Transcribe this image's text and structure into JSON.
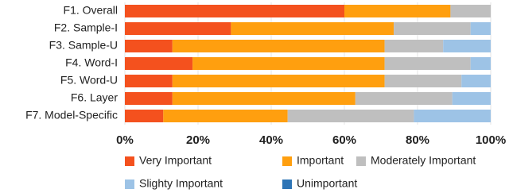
{
  "chart_data": {
    "type": "stacked-bar-horizontal",
    "categories": [
      "F1. Overall",
      "F2. Sample-I",
      "F3. Sample-U",
      "F4. Word-I",
      "F5. Word-U",
      "F6. Layer",
      "F7. Model-Specific"
    ],
    "series": [
      {
        "name": "Very Important",
        "color": "#f4511e",
        "values": [
          60,
          29,
          13,
          18.5,
          13,
          13,
          10.5
        ]
      },
      {
        "name": "Important",
        "color": "#ff9f0f",
        "values": [
          29,
          44.5,
          58,
          52.5,
          58,
          50,
          34
        ]
      },
      {
        "name": "Moderately Important",
        "color": "#bfbfbf",
        "values": [
          11,
          21,
          16,
          23.5,
          21,
          26.5,
          34.5
        ]
      },
      {
        "name": "Slighty Important",
        "color": "#9dc3e6",
        "values": [
          0,
          5.5,
          13,
          5.5,
          8,
          10.5,
          21
        ]
      },
      {
        "name": "Unimportant",
        "color": "#2e75b6",
        "values": [
          0,
          0,
          0,
          0,
          0,
          0,
          0
        ]
      }
    ],
    "xlim": [
      0,
      100
    ],
    "xticks": [
      {
        "value": 0,
        "label": "0%"
      },
      {
        "value": 20,
        "label": "20%"
      },
      {
        "value": 40,
        "label": "40%"
      },
      {
        "value": 60,
        "label": "60%"
      },
      {
        "value": 80,
        "label": "80%"
      },
      {
        "value": 100,
        "label": "100%"
      }
    ],
    "grid": true,
    "legend": "bottom"
  }
}
